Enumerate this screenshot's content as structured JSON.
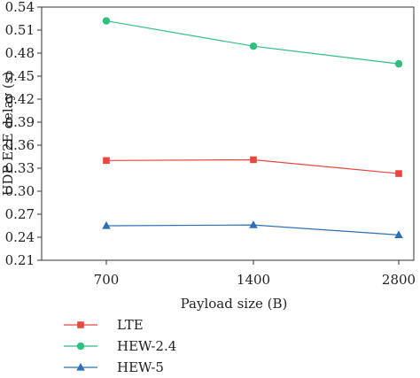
{
  "chart_data": {
    "type": "line",
    "xlabel": "Payload size (B)",
    "ylabel": "UDP E2E delay (s)",
    "categories": [
      "700",
      "1400",
      "2800"
    ],
    "ylim": [
      0.21,
      0.54
    ],
    "yticks": [
      "0.21",
      "0.24",
      "0.27",
      "0.30",
      "0.33",
      "0.36",
      "0.39",
      "0.42",
      "0.45",
      "0.48",
      "0.51",
      "0.54"
    ],
    "grid": false,
    "legend_position": "below",
    "series": [
      {
        "name": "LTE",
        "values": [
          0.34,
          0.341,
          0.323
        ],
        "color": "#e8473f",
        "marker": "square"
      },
      {
        "name": "HEW-2.4",
        "values": [
          0.522,
          0.489,
          0.466
        ],
        "color": "#2fbf7f",
        "marker": "circle"
      },
      {
        "name": "HEW-5",
        "values": [
          0.255,
          0.256,
          0.243
        ],
        "color": "#2f6fb5",
        "marker": "triangle"
      }
    ]
  }
}
